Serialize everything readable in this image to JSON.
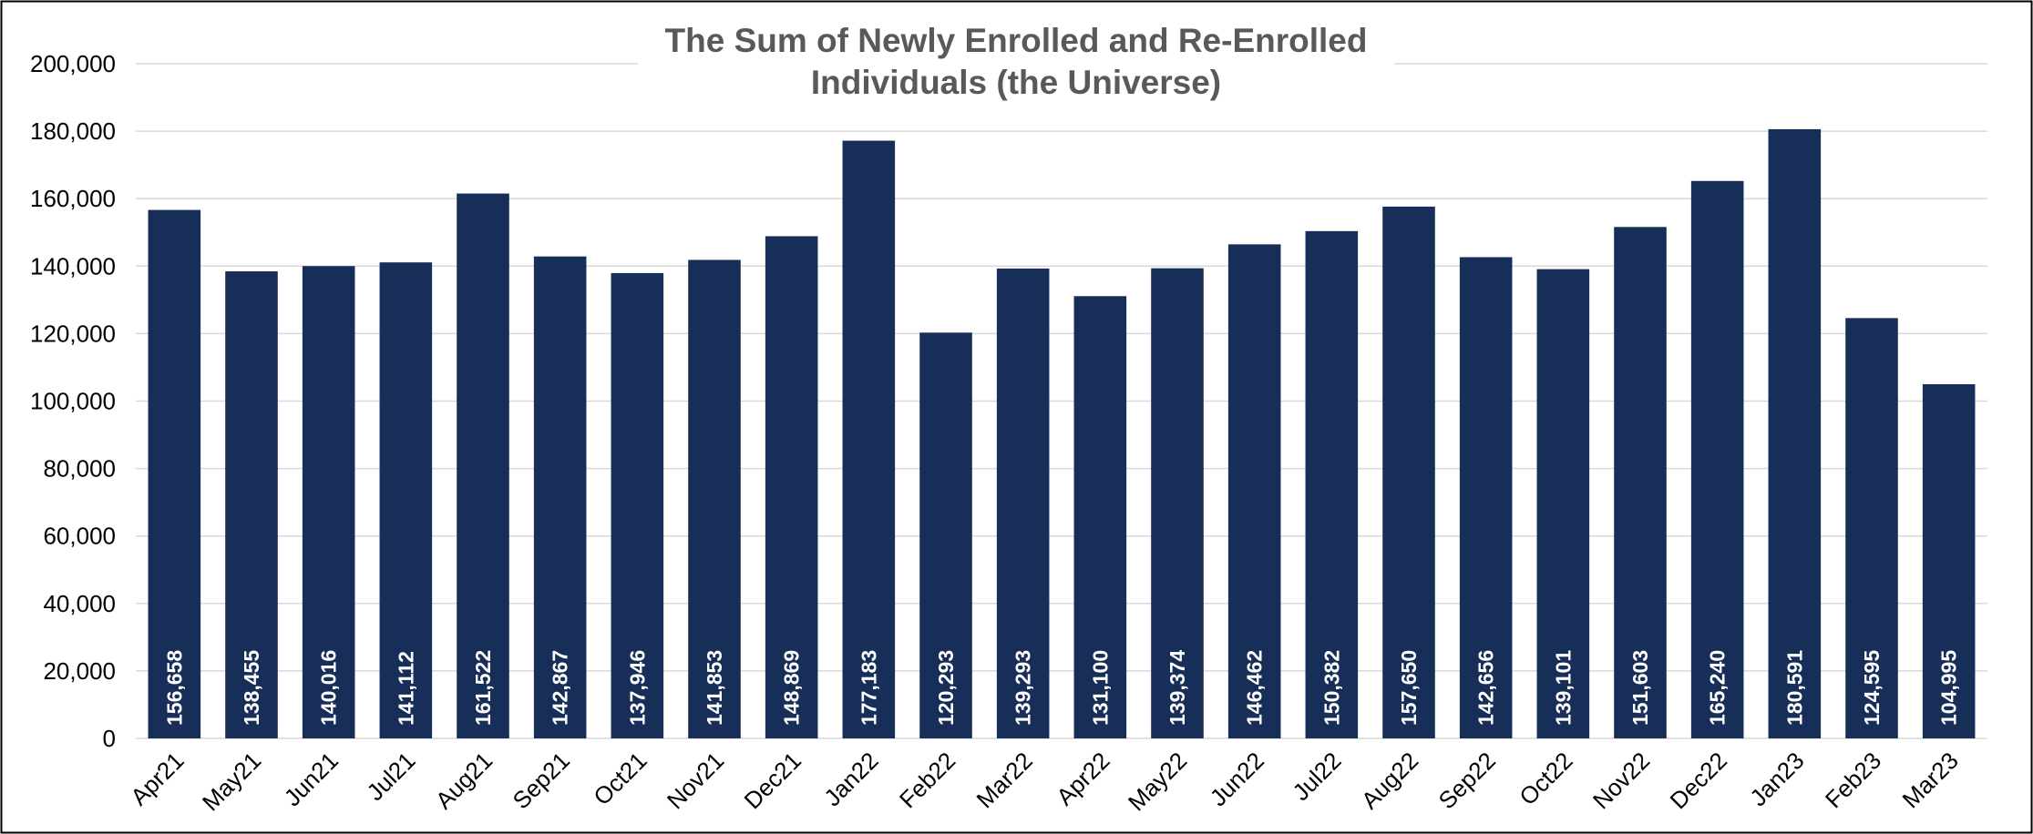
{
  "chart_data": {
    "type": "bar",
    "title": "The Sum of Newly Enrolled and Re-Enrolled Individuals (the Universe)",
    "categories": [
      "Apr21",
      "May21",
      "Jun21",
      "Jul21",
      "Aug21",
      "Sep21",
      "Oct21",
      "Nov21",
      "Dec21",
      "Jan22",
      "Feb22",
      "Mar22",
      "Apr22",
      "May22",
      "Jun22",
      "Jul22",
      "Aug22",
      "Sep22",
      "Oct22",
      "Nov22",
      "Dec22",
      "Jan23",
      "Feb23",
      "Mar23"
    ],
    "values": [
      156658,
      138455,
      140016,
      141112,
      161522,
      142867,
      137946,
      141853,
      148869,
      177183,
      120293,
      139293,
      131100,
      139374,
      146462,
      150382,
      157650,
      142656,
      139101,
      151603,
      165240,
      180591,
      124595,
      104995
    ],
    "value_labels": [
      "156,658",
      "138,455",
      "140,016",
      "141,112",
      "161,522",
      "142,867",
      "137,946",
      "141,853",
      "148,869",
      "177,183",
      "120,293",
      "139,293",
      "131,100",
      "139,374",
      "146,462",
      "150,382",
      "157,650",
      "142,656",
      "139,101",
      "151,603",
      "165,240",
      "180,591",
      "124,595",
      "104,995"
    ],
    "color": "#172e59",
    "ylim": [
      0,
      200000
    ],
    "yticks": [
      {
        "value": 0,
        "label": "0"
      },
      {
        "value": 20000,
        "label": "20,000"
      },
      {
        "value": 40000,
        "label": "40,000"
      },
      {
        "value": 60000,
        "label": "60,000"
      },
      {
        "value": 80000,
        "label": "80,000"
      },
      {
        "value": 100000,
        "label": "100,000"
      },
      {
        "value": 120000,
        "label": "120,000"
      },
      {
        "value": 140000,
        "label": "140,000"
      },
      {
        "value": 160000,
        "label": "160,000"
      },
      {
        "value": 180000,
        "label": "180,000"
      },
      {
        "value": 200000,
        "label": "200,000"
      }
    ],
    "grid": true
  }
}
